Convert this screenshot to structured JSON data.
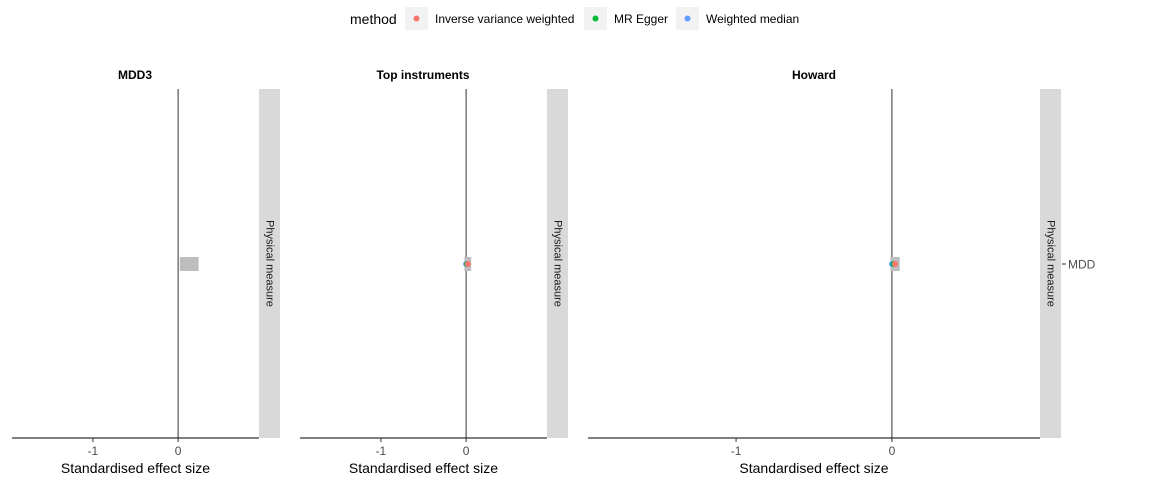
{
  "legend": {
    "title": "method",
    "items": [
      {
        "label": "Inverse variance weighted",
        "color": "#F8766D"
      },
      {
        "label": "MR Egger",
        "color": "#00BA38"
      },
      {
        "label": "Weighted median",
        "color": "#619CFF"
      }
    ]
  },
  "row_label": "MDD",
  "strip_label": "Physical measure",
  "chart_data": [
    {
      "type": "scatter",
      "title": "MDD3",
      "xlabel": "Standardised effect size",
      "xlim": [
        -1.95,
        0.95
      ],
      "xticks": [
        -1,
        0
      ],
      "points": [],
      "error_bars": [
        {
          "method": "Inverse variance weighted",
          "low": 0.02,
          "high": 0.24
        }
      ]
    },
    {
      "type": "scatter",
      "title": "Top instruments",
      "xlabel": "Standardised effect size",
      "xlim": [
        -1.95,
        0.95
      ],
      "xticks": [
        -1,
        0
      ],
      "points": [
        {
          "method": "Weighted median",
          "x": 0.0
        },
        {
          "method": "MR Egger",
          "x": 0.01
        },
        {
          "method": "Inverse variance weighted",
          "x": 0.02
        }
      ],
      "error_bars": [
        {
          "method": "Inverse variance weighted",
          "low": -0.02,
          "high": 0.06
        }
      ]
    },
    {
      "type": "scatter",
      "title": "Howard",
      "xlabel": "Standardised effect size",
      "xlim": [
        -1.95,
        0.95
      ],
      "xticks": [
        -1,
        0
      ],
      "points": [
        {
          "method": "Weighted median",
          "x": 0.0
        },
        {
          "method": "MR Egger",
          "x": 0.01
        },
        {
          "method": "Inverse variance weighted",
          "x": 0.02
        }
      ],
      "error_bars": [
        {
          "method": "Inverse variance weighted",
          "low": -0.01,
          "high": 0.05
        }
      ]
    }
  ]
}
